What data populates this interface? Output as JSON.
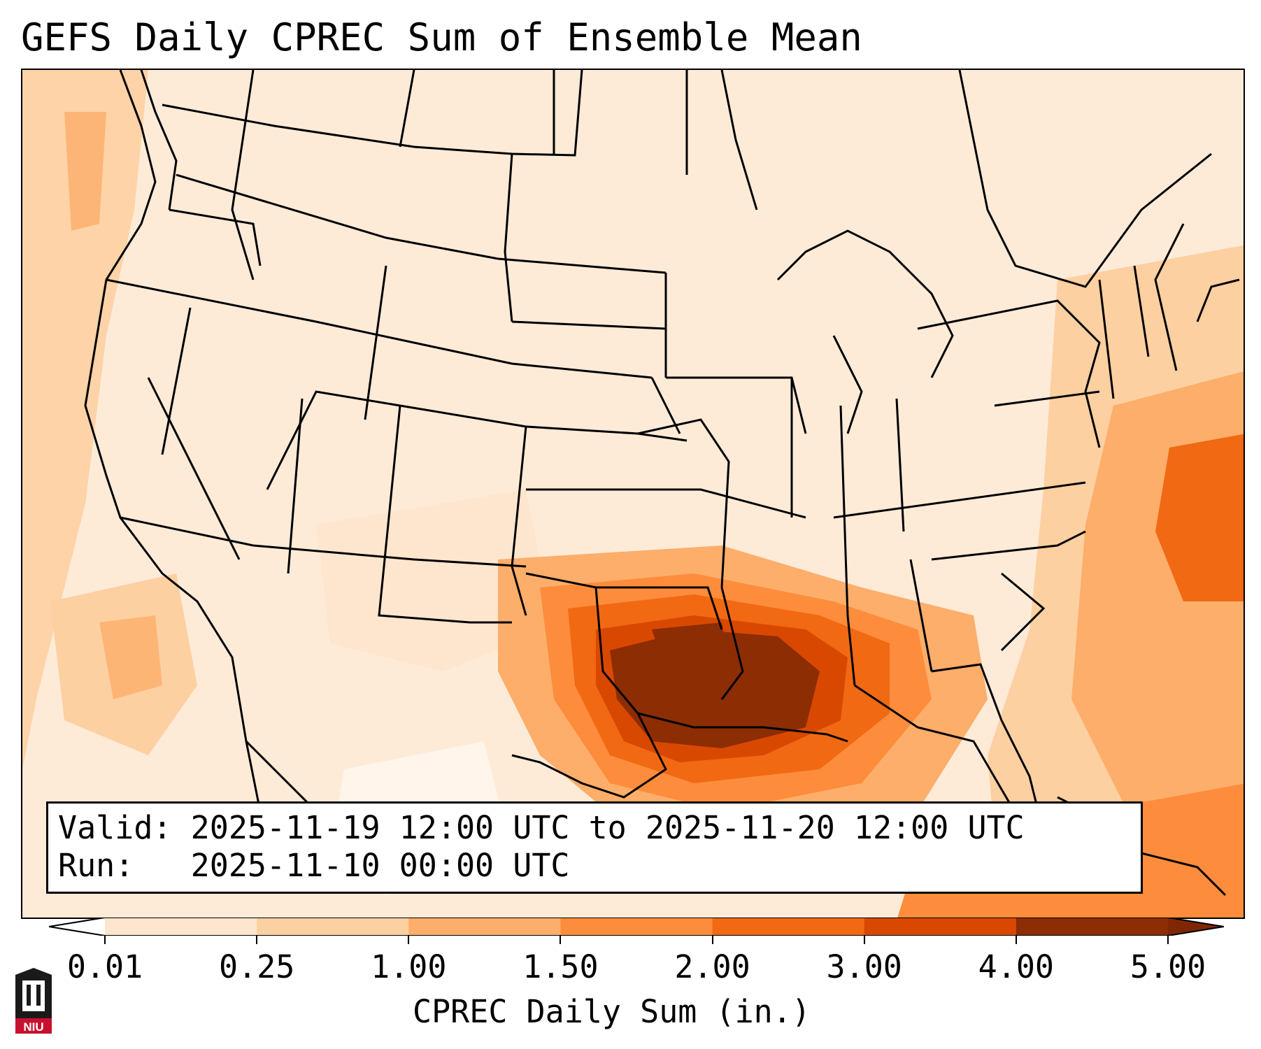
{
  "title": "GEFS Daily CPREC Sum of Ensemble Mean",
  "info": {
    "valid_label": "Valid:",
    "valid_value": "2025-11-19 12:00 UTC to 2025-11-20 12:00 UTC",
    "run_label": "Run:",
    "run_value": "2025-11-10 00:00 UTC"
  },
  "colorbar": {
    "label": "CPREC Daily Sum (in.)",
    "ticks": [
      "0.01",
      "0.25",
      "1.00",
      "1.50",
      "2.00",
      "3.00",
      "4.00",
      "5.00"
    ],
    "colors": [
      "#fff5eb",
      "#fee6ce",
      "#fdd0a2",
      "#fdae6b",
      "#fd8d3c",
      "#f16913",
      "#d94801",
      "#8c2d04"
    ],
    "under_color": "#ffffff",
    "over_color": "#7f2704"
  },
  "logo": {
    "text": "NIU",
    "icon": "university-logo-icon"
  },
  "map": {
    "projection": "lambert-conformal",
    "region": "continental-united-states",
    "heavy_precip_center": "Texas / Louisiana / Arkansas"
  }
}
